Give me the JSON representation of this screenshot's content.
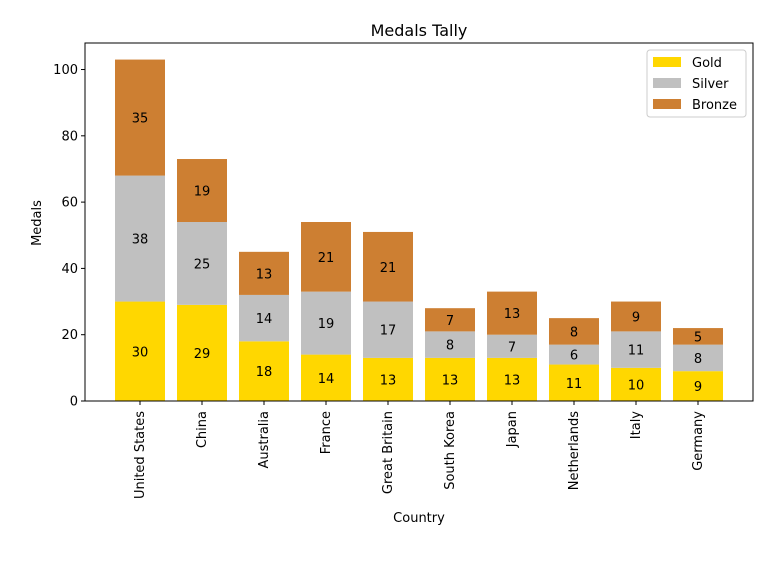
{
  "chart_data": {
    "type": "bar",
    "stacked": true,
    "title": "Medals Tally",
    "xlabel": "Country",
    "ylabel": "Medals",
    "categories": [
      "United States",
      "China",
      "Australia",
      "France",
      "Great Britain",
      "South Korea",
      "Japan",
      "Netherlands",
      "Italy",
      "Germany"
    ],
    "series": [
      {
        "name": "Gold",
        "color": "#FFD700",
        "values": [
          30,
          29,
          18,
          14,
          13,
          13,
          13,
          11,
          10,
          9
        ]
      },
      {
        "name": "Silver",
        "color": "#C0C0C0",
        "values": [
          38,
          25,
          14,
          19,
          17,
          8,
          7,
          6,
          11,
          8
        ]
      },
      {
        "name": "Bronze",
        "color": "#CD7F32",
        "values": [
          35,
          19,
          13,
          21,
          21,
          7,
          13,
          8,
          9,
          5
        ]
      }
    ],
    "ylim": [
      0,
      108
    ],
    "yticks": [
      0,
      20,
      40,
      60,
      80,
      100
    ],
    "grid": false,
    "legend_position": "top-right"
  }
}
